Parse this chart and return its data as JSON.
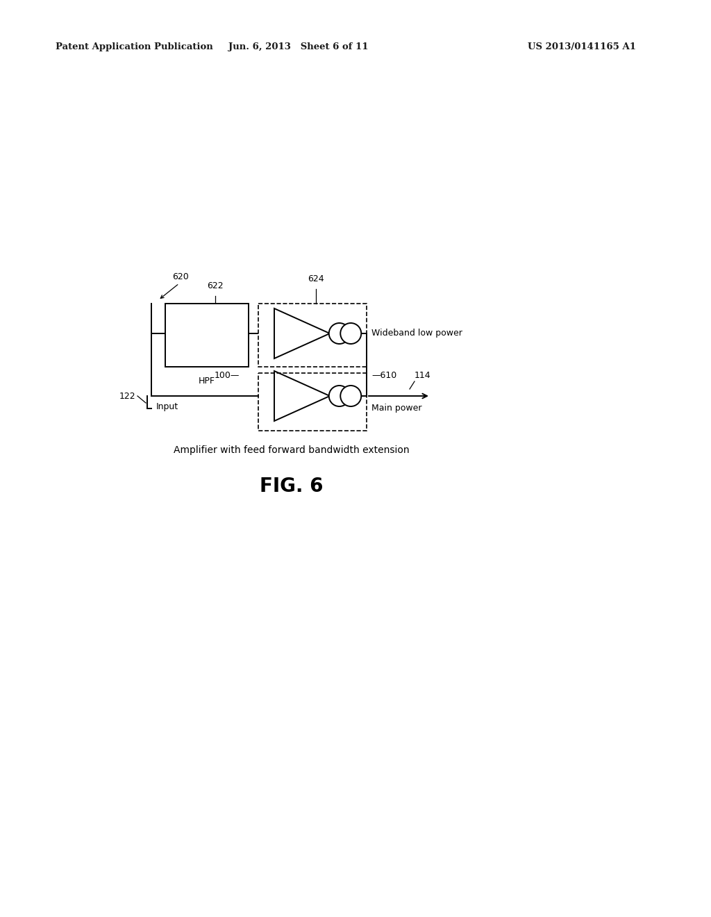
{
  "bg_color": "#ffffff",
  "header_left": "Patent Application Publication",
  "header_mid": "Jun. 6, 2013   Sheet 6 of 11",
  "header_right": "US 2013/0141165 A1",
  "fig_label": "FIG. 6",
  "caption": "Amplifier with feed forward bandwidth extension",
  "lw_main": 1.4,
  "lw_dashed": 1.2,
  "lw_thin": 0.9,
  "fs_header": 9.5,
  "fs_label": 9,
  "fs_caption": 10,
  "fs_fig": 20
}
